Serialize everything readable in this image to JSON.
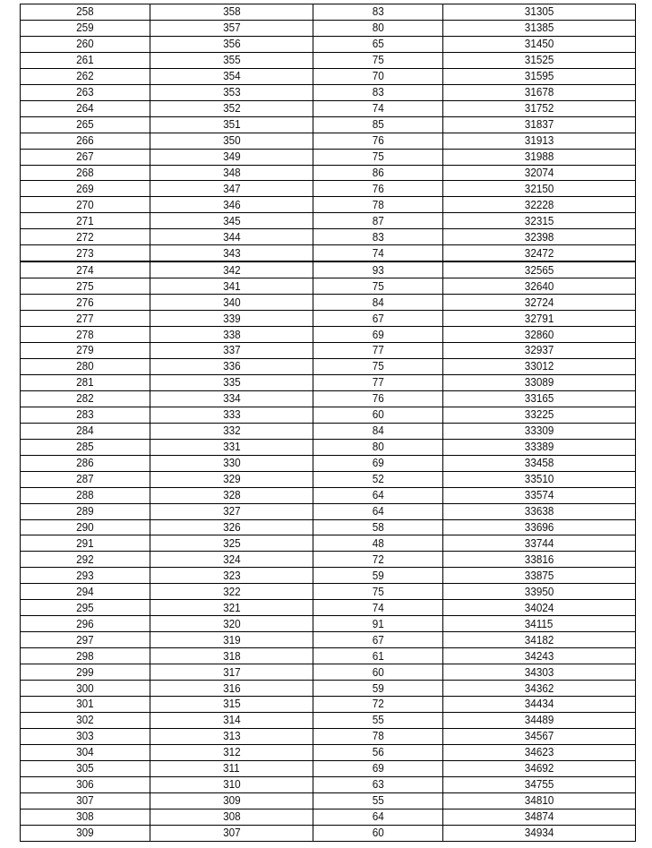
{
  "table": {
    "rows": [
      [
        "258",
        "358",
        "83",
        "31305"
      ],
      [
        "259",
        "357",
        "80",
        "31385"
      ],
      [
        "260",
        "356",
        "65",
        "31450"
      ],
      [
        "261",
        "355",
        "75",
        "31525"
      ],
      [
        "262",
        "354",
        "70",
        "31595"
      ],
      [
        "263",
        "353",
        "83",
        "31678"
      ],
      [
        "264",
        "352",
        "74",
        "31752"
      ],
      [
        "265",
        "351",
        "85",
        "31837"
      ],
      [
        "266",
        "350",
        "76",
        "31913"
      ],
      [
        "267",
        "349",
        "75",
        "31988"
      ],
      [
        "268",
        "348",
        "86",
        "32074"
      ],
      [
        "269",
        "347",
        "76",
        "32150"
      ],
      [
        "270",
        "346",
        "78",
        "32228"
      ],
      [
        "271",
        "345",
        "87",
        "32315"
      ],
      [
        "272",
        "344",
        "83",
        "32398"
      ],
      [
        "273",
        "343",
        "74",
        "32472"
      ],
      [
        "274",
        "342",
        "93",
        "32565"
      ],
      [
        "275",
        "341",
        "75",
        "32640"
      ],
      [
        "276",
        "340",
        "84",
        "32724"
      ],
      [
        "277",
        "339",
        "67",
        "32791"
      ],
      [
        "278",
        "338",
        "69",
        "32860"
      ],
      [
        "279",
        "337",
        "77",
        "32937"
      ],
      [
        "280",
        "336",
        "75",
        "33012"
      ],
      [
        "281",
        "335",
        "77",
        "33089"
      ],
      [
        "282",
        "334",
        "76",
        "33165"
      ],
      [
        "283",
        "333",
        "60",
        "33225"
      ],
      [
        "284",
        "332",
        "84",
        "33309"
      ],
      [
        "285",
        "331",
        "80",
        "33389"
      ],
      [
        "286",
        "330",
        "69",
        "33458"
      ],
      [
        "287",
        "329",
        "52",
        "33510"
      ],
      [
        "288",
        "328",
        "64",
        "33574"
      ],
      [
        "289",
        "327",
        "64",
        "33638"
      ],
      [
        "290",
        "326",
        "58",
        "33696"
      ],
      [
        "291",
        "325",
        "48",
        "33744"
      ],
      [
        "292",
        "324",
        "72",
        "33816"
      ],
      [
        "293",
        "323",
        "59",
        "33875"
      ],
      [
        "294",
        "322",
        "75",
        "33950"
      ],
      [
        "295",
        "321",
        "74",
        "34024"
      ],
      [
        "296",
        "320",
        "91",
        "34115"
      ],
      [
        "297",
        "319",
        "67",
        "34182"
      ],
      [
        "298",
        "318",
        "61",
        "34243"
      ],
      [
        "299",
        "317",
        "60",
        "34303"
      ],
      [
        "300",
        "316",
        "59",
        "34362"
      ],
      [
        "301",
        "315",
        "72",
        "34434"
      ],
      [
        "302",
        "314",
        "55",
        "34489"
      ],
      [
        "303",
        "313",
        "78",
        "34567"
      ],
      [
        "304",
        "312",
        "56",
        "34623"
      ],
      [
        "305",
        "311",
        "69",
        "34692"
      ],
      [
        "306",
        "310",
        "63",
        "34755"
      ],
      [
        "307",
        "309",
        "55",
        "34810"
      ],
      [
        "308",
        "308",
        "64",
        "34874"
      ],
      [
        "309",
        "307",
        "60",
        "34934"
      ]
    ],
    "thick_divider_after_row": "273"
  }
}
